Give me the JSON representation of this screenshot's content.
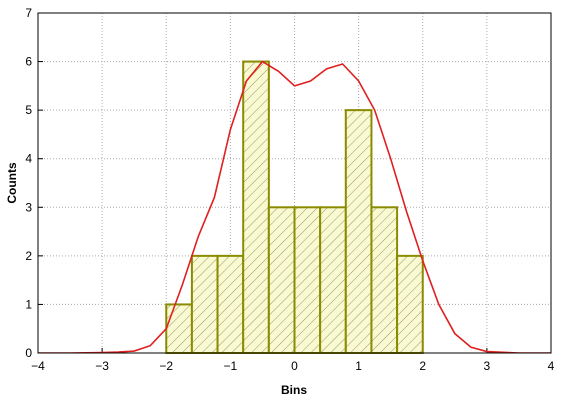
{
  "chart_data": {
    "type": "histogram",
    "xlabel": "Bins",
    "ylabel": "Counts",
    "bins": [
      -2.0,
      -1.6,
      -1.2,
      -0.8,
      -0.4,
      0.0,
      0.4,
      0.8,
      1.2,
      1.6,
      2.0
    ],
    "counts": [
      1,
      2,
      2,
      6,
      3,
      3,
      3,
      5,
      3,
      2
    ],
    "color": "#8b8b00",
    "fill": "#fafad2",
    "curve": {
      "color": "#e02020",
      "x": [
        -4,
        -3.5,
        -3,
        -2.75,
        -2.5,
        -2.25,
        -2,
        -1.75,
        -1.5,
        -1.25,
        -1,
        -0.75,
        -0.5,
        -0.25,
        0,
        0.25,
        0.5,
        0.75,
        1,
        1.25,
        1.5,
        1.75,
        2,
        2.25,
        2.5,
        2.75,
        3,
        3.5,
        4
      ],
      "y": [
        0,
        0,
        0.01,
        0.02,
        0.04,
        0.15,
        0.5,
        1.4,
        2.4,
        3.2,
        4.6,
        5.6,
        6.0,
        5.8,
        5.5,
        5.6,
        5.85,
        5.95,
        5.6,
        5.0,
        4.0,
        2.9,
        1.9,
        1.0,
        0.4,
        0.12,
        0.03,
        0,
        0
      ]
    },
    "xlim": [
      -4,
      4
    ],
    "ylim": [
      0,
      7
    ],
    "xticks": [
      {
        "value": -4,
        "label": "−4"
      },
      {
        "value": -3,
        "label": "−3"
      },
      {
        "value": -2,
        "label": "−2"
      },
      {
        "value": -1,
        "label": "−1"
      },
      0,
      1,
      2,
      3,
      4
    ],
    "yticks": [
      0,
      1,
      2,
      3,
      4,
      5,
      6,
      7
    ],
    "grid": true
  }
}
